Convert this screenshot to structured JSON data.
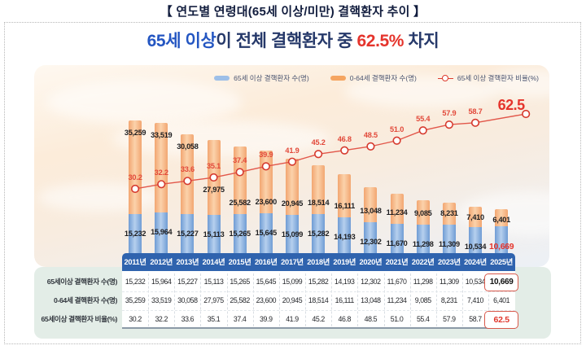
{
  "title": "【 연도별 연령대(65세 이상/미만) 결핵환자 추이 】",
  "headline": {
    "part1": "65세 이상",
    "part2": "이 전체 결핵환자 중 ",
    "part3": "62.5%",
    "part4": " 차지"
  },
  "legend": [
    {
      "label": "65세 이상 결핵환자 수(명)",
      "type": "bar",
      "color": "#9dbfe8"
    },
    {
      "label": "0-64세 결핵환자 수(명)",
      "type": "bar",
      "color": "#f5a561"
    },
    {
      "label": "65세 이상 결핵환자 비율(%)",
      "type": "line",
      "color": "#dd3b2d"
    }
  ],
  "chart_data": {
    "type": "bar",
    "subtype": "stacked-bars-with-line",
    "categories": [
      "2011년",
      "2012년",
      "2013년",
      "2014년",
      "2015년",
      "2016년",
      "2017년",
      "2018년",
      "2019년",
      "2020년",
      "2021년",
      "2022년",
      "2023년",
      "2024년",
      "2025년"
    ],
    "series": [
      {
        "name": "65세 이상 결핵환자 수(명)",
        "type": "bar",
        "stack": "total",
        "color": "#7aa3d8",
        "values": [
          15232,
          15964,
          15227,
          15113,
          15265,
          15645,
          15099,
          15282,
          14193,
          12302,
          11670,
          11298,
          11309,
          10534,
          10669
        ]
      },
      {
        "name": "0-64세 결핵환자 수(명)",
        "type": "bar",
        "stack": "total",
        "color": "#f3a876",
        "values": [
          35259,
          33519,
          30058,
          27975,
          25582,
          23600,
          20945,
          18514,
          16111,
          13048,
          11234,
          9085,
          8231,
          7410,
          6401
        ]
      },
      {
        "name": "65세 이상 결핵환자 비율(%)",
        "type": "line",
        "color": "#e04a3c",
        "marker": "open-circle",
        "values": [
          30.2,
          32.2,
          33.6,
          35.1,
          37.4,
          39.9,
          41.9,
          45.2,
          46.8,
          48.5,
          51.0,
          55.4,
          57.9,
          58.7,
          62.5
        ]
      }
    ],
    "highlight_last_category": true,
    "highlight_color": "#e5342c",
    "legend_position": "top-right",
    "grid": false,
    "axes_visible": false,
    "data_labels": true
  },
  "table": {
    "header": [
      "2011년",
      "2012년",
      "2013년",
      "2014년",
      "2015년",
      "2016년",
      "2017년",
      "2018년",
      "2019년",
      "2020년",
      "2021년",
      "2022년",
      "2023년",
      "2024년",
      "2025년"
    ],
    "rows": [
      {
        "label": "65세이상 결핵환자 수(명)",
        "values": [
          "15,232",
          "15,964",
          "15,227",
          "15,113",
          "15,265",
          "15,645",
          "15,099",
          "15,282",
          "14,193",
          "12,302",
          "11,670",
          "11,298",
          "11,309",
          "10,534",
          "10,669"
        ],
        "last_highlighted": true
      },
      {
        "label": "0-64세 결핵환자 수(명)",
        "values": [
          "35,259",
          "33,519",
          "30,058",
          "27,975",
          "25,582",
          "23,600",
          "20,945",
          "18,514",
          "16,111",
          "13,048",
          "11,234",
          "9,085",
          "8,231",
          "7,410",
          "6,401"
        ],
        "last_highlighted": false
      },
      {
        "label": "65세이상 결핵환자 비율(%)",
        "values": [
          "30.2",
          "32.2",
          "33.6",
          "35.1",
          "37.4",
          "39.9",
          "41.9",
          "45.2",
          "46.8",
          "48.5",
          "51.0",
          "55.4",
          "57.9",
          "58.7",
          "62.5"
        ],
        "last_highlighted": true
      }
    ],
    "header_bg": "#2f63ae",
    "card_bg": "#e3ede7"
  }
}
